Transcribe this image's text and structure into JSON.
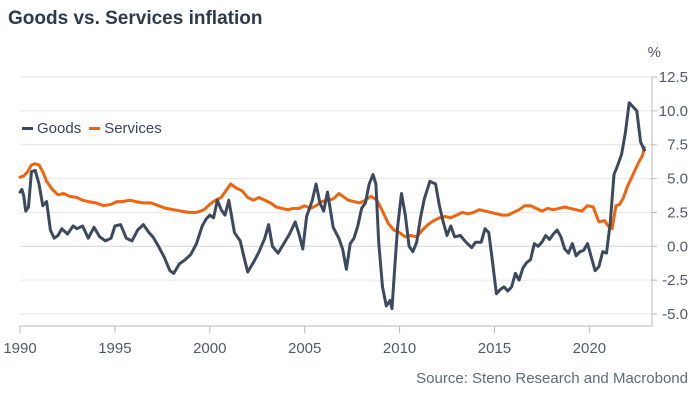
{
  "title": "Goods vs. Services inflation",
  "source": "Source: Steno Research and Macrobond",
  "chart_data": {
    "type": "line",
    "title": "Goods vs. Services inflation",
    "y_unit": "%",
    "xlim": [
      1990,
      2023.3
    ],
    "ylim": [
      -5.0,
      12.5
    ],
    "x_ticks": [
      1990,
      1995,
      2000,
      2005,
      2010,
      2015,
      2020
    ],
    "y_ticks": [
      12.5,
      10.0,
      7.5,
      5.0,
      2.5,
      0.0,
      -2.5,
      -5.0
    ],
    "y_tick_labels": [
      "12.5",
      "10.0",
      "7.5",
      "5.0",
      "2.5",
      "0.0",
      "-2.5",
      "-5.0"
    ],
    "grid": "horizontal",
    "legend_position": "top-left",
    "series": [
      {
        "name": "Goods",
        "color": "#3c4a60",
        "points": [
          [
            1990.0,
            4.0
          ],
          [
            1990.1,
            4.2
          ],
          [
            1990.2,
            3.7
          ],
          [
            1990.3,
            2.6
          ],
          [
            1990.45,
            2.9
          ],
          [
            1990.6,
            5.5
          ],
          [
            1990.8,
            5.6
          ],
          [
            1991.0,
            4.6
          ],
          [
            1991.2,
            3.0
          ],
          [
            1991.4,
            3.3
          ],
          [
            1991.6,
            1.2
          ],
          [
            1991.8,
            0.6
          ],
          [
            1992.0,
            0.8
          ],
          [
            1992.2,
            1.3
          ],
          [
            1992.5,
            0.9
          ],
          [
            1992.8,
            1.5
          ],
          [
            1993.0,
            1.3
          ],
          [
            1993.3,
            1.5
          ],
          [
            1993.6,
            0.6
          ],
          [
            1993.9,
            1.4
          ],
          [
            1994.2,
            0.7
          ],
          [
            1994.5,
            0.4
          ],
          [
            1994.8,
            0.6
          ],
          [
            1995.0,
            1.5
          ],
          [
            1995.3,
            1.6
          ],
          [
            1995.6,
            0.6
          ],
          [
            1995.9,
            0.4
          ],
          [
            1996.2,
            1.2
          ],
          [
            1996.5,
            1.6
          ],
          [
            1996.8,
            1.0
          ],
          [
            1997.0,
            0.7
          ],
          [
            1997.3,
            0.0
          ],
          [
            1997.6,
            -0.8
          ],
          [
            1997.9,
            -1.8
          ],
          [
            1998.1,
            -2.0
          ],
          [
            1998.4,
            -1.3
          ],
          [
            1998.7,
            -1.0
          ],
          [
            1999.0,
            -0.6
          ],
          [
            1999.3,
            0.2
          ],
          [
            1999.6,
            1.5
          ],
          [
            1999.8,
            2.0
          ],
          [
            2000.0,
            2.3
          ],
          [
            2000.2,
            2.1
          ],
          [
            2000.4,
            3.4
          ],
          [
            2000.6,
            2.7
          ],
          [
            2000.8,
            2.3
          ],
          [
            2001.0,
            3.4
          ],
          [
            2001.3,
            1.0
          ],
          [
            2001.6,
            0.4
          ],
          [
            2001.8,
            -0.8
          ],
          [
            2002.0,
            -1.9
          ],
          [
            2002.3,
            -1.2
          ],
          [
            2002.6,
            -0.4
          ],
          [
            2002.9,
            0.6
          ],
          [
            2003.1,
            1.6
          ],
          [
            2003.3,
            0.0
          ],
          [
            2003.6,
            -0.5
          ],
          [
            2003.9,
            0.2
          ],
          [
            2004.2,
            0.9
          ],
          [
            2004.5,
            1.8
          ],
          [
            2004.7,
            0.9
          ],
          [
            2004.9,
            -0.2
          ],
          [
            2005.1,
            2.2
          ],
          [
            2005.4,
            3.4
          ],
          [
            2005.6,
            4.6
          ],
          [
            2005.8,
            3.2
          ],
          [
            2006.0,
            2.6
          ],
          [
            2006.2,
            4.0
          ],
          [
            2006.5,
            1.4
          ],
          [
            2006.8,
            0.6
          ],
          [
            2007.0,
            -0.2
          ],
          [
            2007.2,
            -1.7
          ],
          [
            2007.4,
            0.2
          ],
          [
            2007.6,
            0.6
          ],
          [
            2007.8,
            1.5
          ],
          [
            2008.0,
            2.8
          ],
          [
            2008.2,
            3.2
          ],
          [
            2008.4,
            4.6
          ],
          [
            2008.6,
            5.3
          ],
          [
            2008.75,
            4.6
          ],
          [
            2008.9,
            0.3
          ],
          [
            2009.1,
            -3.0
          ],
          [
            2009.3,
            -4.4
          ],
          [
            2009.5,
            -4.0
          ],
          [
            2009.6,
            -4.6
          ],
          [
            2009.75,
            -1.5
          ],
          [
            2009.9,
            1.5
          ],
          [
            2010.1,
            3.9
          ],
          [
            2010.3,
            2.3
          ],
          [
            2010.5,
            0.0
          ],
          [
            2010.7,
            -0.4
          ],
          [
            2010.9,
            0.3
          ],
          [
            2011.1,
            2.1
          ],
          [
            2011.3,
            3.5
          ],
          [
            2011.6,
            4.8
          ],
          [
            2011.9,
            4.6
          ],
          [
            2012.1,
            3.0
          ],
          [
            2012.3,
            1.8
          ],
          [
            2012.5,
            0.8
          ],
          [
            2012.7,
            1.5
          ],
          [
            2012.9,
            0.7
          ],
          [
            2013.2,
            0.8
          ],
          [
            2013.5,
            0.3
          ],
          [
            2013.8,
            -0.1
          ],
          [
            2014.0,
            0.3
          ],
          [
            2014.3,
            0.3
          ],
          [
            2014.5,
            1.3
          ],
          [
            2014.7,
            1.0
          ],
          [
            2014.9,
            -1.2
          ],
          [
            2015.1,
            -3.5
          ],
          [
            2015.3,
            -3.2
          ],
          [
            2015.5,
            -3.0
          ],
          [
            2015.7,
            -3.3
          ],
          [
            2015.9,
            -3.0
          ],
          [
            2016.1,
            -2.0
          ],
          [
            2016.3,
            -2.5
          ],
          [
            2016.5,
            -1.6
          ],
          [
            2016.7,
            -1.2
          ],
          [
            2016.9,
            -1.0
          ],
          [
            2017.1,
            0.2
          ],
          [
            2017.3,
            0.0
          ],
          [
            2017.5,
            0.3
          ],
          [
            2017.7,
            0.8
          ],
          [
            2017.9,
            0.5
          ],
          [
            2018.1,
            0.9
          ],
          [
            2018.3,
            1.2
          ],
          [
            2018.5,
            0.7
          ],
          [
            2018.7,
            -0.2
          ],
          [
            2018.9,
            -0.5
          ],
          [
            2019.1,
            0.2
          ],
          [
            2019.3,
            -0.7
          ],
          [
            2019.5,
            -0.4
          ],
          [
            2019.7,
            -0.3
          ],
          [
            2019.9,
            0.2
          ],
          [
            2020.1,
            -0.8
          ],
          [
            2020.3,
            -1.8
          ],
          [
            2020.5,
            -1.5
          ],
          [
            2020.7,
            -0.4
          ],
          [
            2020.9,
            -0.5
          ],
          [
            2021.1,
            1.7
          ],
          [
            2021.3,
            5.3
          ],
          [
            2021.5,
            6.0
          ],
          [
            2021.7,
            6.8
          ],
          [
            2021.9,
            8.4
          ],
          [
            2022.1,
            10.6
          ],
          [
            2022.3,
            10.3
          ],
          [
            2022.5,
            10.0
          ],
          [
            2022.7,
            7.7
          ],
          [
            2022.9,
            7.1
          ]
        ]
      },
      {
        "name": "Services",
        "color": "#f0640f",
        "points": [
          [
            1990.0,
            5.1
          ],
          [
            1990.2,
            5.2
          ],
          [
            1990.4,
            5.5
          ],
          [
            1990.6,
            6.0
          ],
          [
            1990.8,
            6.1
          ],
          [
            1991.0,
            6.0
          ],
          [
            1991.2,
            5.5
          ],
          [
            1991.4,
            4.8
          ],
          [
            1991.7,
            4.2
          ],
          [
            1992.0,
            3.8
          ],
          [
            1992.3,
            3.9
          ],
          [
            1992.6,
            3.7
          ],
          [
            1993.0,
            3.6
          ],
          [
            1993.3,
            3.4
          ],
          [
            1993.6,
            3.3
          ],
          [
            1994.0,
            3.2
          ],
          [
            1994.4,
            3.0
          ],
          [
            1994.8,
            3.1
          ],
          [
            1995.1,
            3.3
          ],
          [
            1995.4,
            3.3
          ],
          [
            1995.8,
            3.4
          ],
          [
            1996.1,
            3.3
          ],
          [
            1996.5,
            3.2
          ],
          [
            1996.9,
            3.2
          ],
          [
            1997.3,
            3.0
          ],
          [
            1997.7,
            2.8
          ],
          [
            1998.1,
            2.7
          ],
          [
            1998.5,
            2.6
          ],
          [
            1998.9,
            2.5
          ],
          [
            1999.3,
            2.5
          ],
          [
            1999.7,
            2.7
          ],
          [
            2000.0,
            3.1
          ],
          [
            2000.3,
            3.4
          ],
          [
            2000.6,
            3.6
          ],
          [
            2000.9,
            4.2
          ],
          [
            2001.1,
            4.6
          ],
          [
            2001.4,
            4.3
          ],
          [
            2001.7,
            4.1
          ],
          [
            2002.0,
            3.6
          ],
          [
            2002.3,
            3.4
          ],
          [
            2002.6,
            3.6
          ],
          [
            2002.9,
            3.4
          ],
          [
            2003.2,
            3.2
          ],
          [
            2003.5,
            2.9
          ],
          [
            2003.8,
            2.8
          ],
          [
            2004.1,
            2.7
          ],
          [
            2004.4,
            2.8
          ],
          [
            2004.7,
            2.8
          ],
          [
            2005.0,
            3.0
          ],
          [
            2005.3,
            2.8
          ],
          [
            2005.6,
            3.0
          ],
          [
            2005.9,
            3.3
          ],
          [
            2006.2,
            3.4
          ],
          [
            2006.5,
            3.5
          ],
          [
            2006.8,
            3.9
          ],
          [
            2007.0,
            3.7
          ],
          [
            2007.3,
            3.4
          ],
          [
            2007.6,
            3.3
          ],
          [
            2007.9,
            3.2
          ],
          [
            2008.2,
            3.4
          ],
          [
            2008.5,
            3.7
          ],
          [
            2008.8,
            3.4
          ],
          [
            2009.1,
            2.6
          ],
          [
            2009.4,
            1.7
          ],
          [
            2009.7,
            1.2
          ],
          [
            2010.0,
            1.0
          ],
          [
            2010.3,
            0.7
          ],
          [
            2010.6,
            0.8
          ],
          [
            2010.9,
            0.7
          ],
          [
            2011.2,
            1.2
          ],
          [
            2011.5,
            1.6
          ],
          [
            2011.8,
            1.9
          ],
          [
            2012.1,
            2.1
          ],
          [
            2012.4,
            2.2
          ],
          [
            2012.7,
            2.1
          ],
          [
            2013.0,
            2.3
          ],
          [
            2013.3,
            2.5
          ],
          [
            2013.6,
            2.4
          ],
          [
            2013.9,
            2.5
          ],
          [
            2014.2,
            2.7
          ],
          [
            2014.5,
            2.6
          ],
          [
            2014.8,
            2.5
          ],
          [
            2015.1,
            2.4
          ],
          [
            2015.4,
            2.3
          ],
          [
            2015.7,
            2.3
          ],
          [
            2016.0,
            2.5
          ],
          [
            2016.3,
            2.7
          ],
          [
            2016.6,
            3.0
          ],
          [
            2016.9,
            3.0
          ],
          [
            2017.2,
            2.8
          ],
          [
            2017.5,
            2.6
          ],
          [
            2017.8,
            2.8
          ],
          [
            2018.1,
            2.7
          ],
          [
            2018.4,
            2.8
          ],
          [
            2018.7,
            2.9
          ],
          [
            2019.0,
            2.8
          ],
          [
            2019.3,
            2.7
          ],
          [
            2019.6,
            2.6
          ],
          [
            2019.9,
            3.0
          ],
          [
            2020.2,
            2.9
          ],
          [
            2020.5,
            1.8
          ],
          [
            2020.8,
            1.9
          ],
          [
            2021.0,
            1.5
          ],
          [
            2021.2,
            1.3
          ],
          [
            2021.4,
            3.0
          ],
          [
            2021.6,
            3.1
          ],
          [
            2021.8,
            3.6
          ],
          [
            2022.0,
            4.4
          ],
          [
            2022.2,
            5.0
          ],
          [
            2022.4,
            5.6
          ],
          [
            2022.6,
            6.2
          ],
          [
            2022.8,
            6.7
          ],
          [
            2022.9,
            7.3
          ]
        ]
      }
    ]
  }
}
